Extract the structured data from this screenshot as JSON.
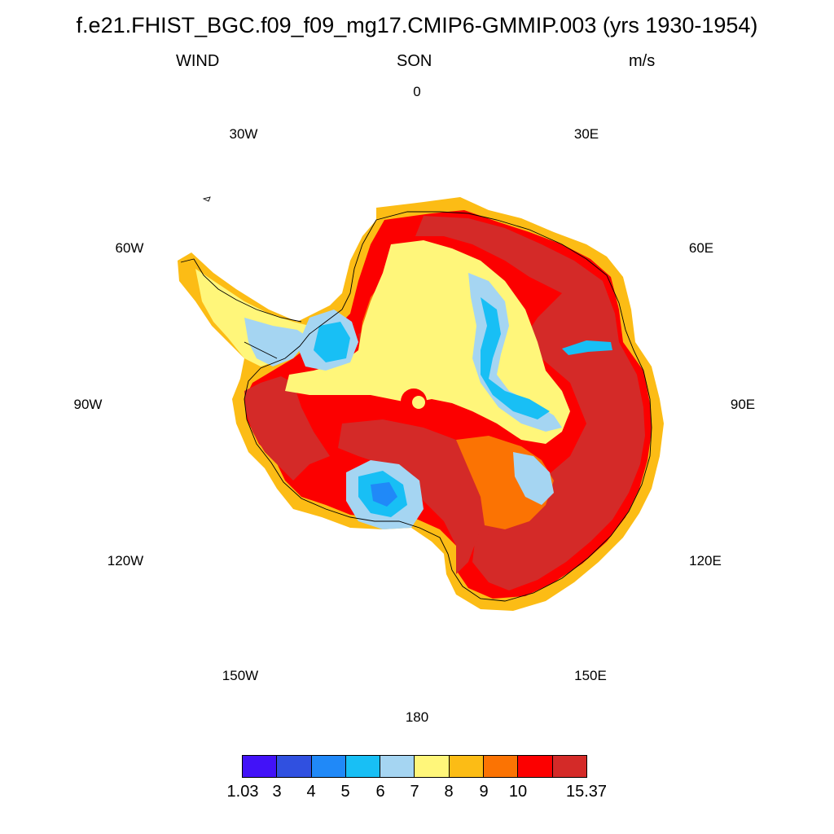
{
  "header": {
    "title": "f.e21.FHIST_BGC.f09_f09_mg17.CMIP6-GMMIP.003 (yrs 1930-1954)",
    "variable": "WIND",
    "season": "SON",
    "units": "m/s"
  },
  "map": {
    "projection": "south-polar-stereographic",
    "longitude_labels": [
      "0",
      "30E",
      "60E",
      "90E",
      "120E",
      "150E",
      "180",
      "150W",
      "120W",
      "90W",
      "60W",
      "30W"
    ],
    "field": "near-surface wind speed over Antarctica"
  },
  "colorbar": {
    "labels": [
      "1.03",
      "3",
      "4",
      "5",
      "6",
      "7",
      "8",
      "9",
      "10",
      "15.37"
    ],
    "colors": [
      "#4212f8",
      "#3050e0",
      "#2089f8",
      "#18bff5",
      "#a5d5f2",
      "#fff67a",
      "#fcbc15",
      "#fb7303",
      "#fc0000",
      "#d42a28"
    ],
    "min": 1.03,
    "max": 15.37
  }
}
